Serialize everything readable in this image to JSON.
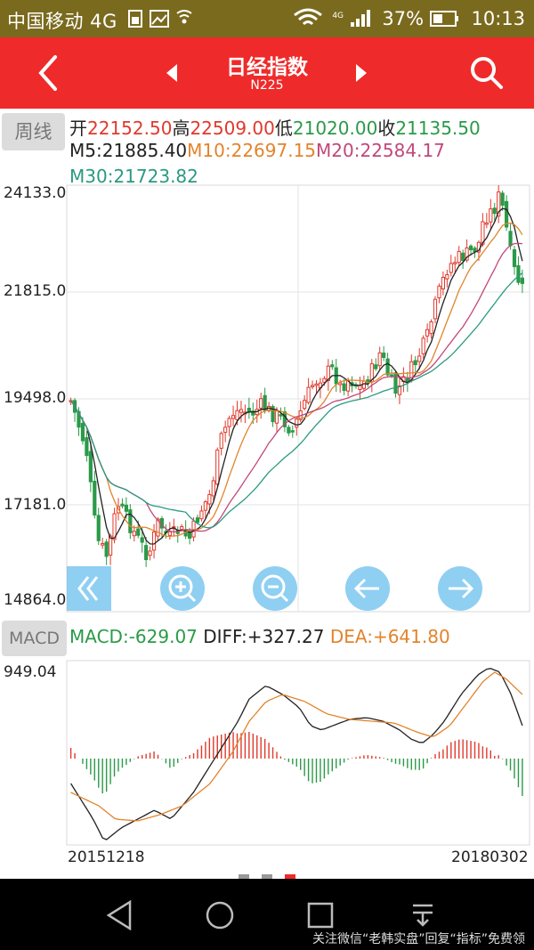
{
  "status_bar": {
    "carrier": "中国移动 4G",
    "battery_percent": "37%",
    "time": "10:13",
    "network_small": "4G"
  },
  "nav": {
    "title": "日经指数",
    "subtitle": "N225",
    "icons": [
      "back-arrow-icon",
      "prev-triangle-icon",
      "next-triangle-icon",
      "search-icon"
    ]
  },
  "period_button": "周线",
  "ohlc": {
    "open_label": "开",
    "open": "22152.50",
    "high_label": "高",
    "high": "22509.00",
    "low_label": "低",
    "low": "21020.00",
    "close_label": "收",
    "close": "21135.50"
  },
  "ma": {
    "m5": "M5:21885.40",
    "m10": "M10:22697.15",
    "m20": "M20:22584.17",
    "m30": "M30:21723.82"
  },
  "y_axis": [
    "24133.0",
    "21815.0",
    "19498.0",
    "17181.0",
    "14864.0"
  ],
  "macd_button": "MACD",
  "macd_info": {
    "macd": "MACD:-629.07",
    "diff": "DIFF:+327.27",
    "dea": "DEA:+641.80"
  },
  "macd_axis_top": "949.04",
  "x_axis": {
    "start": "20151218",
    "end": "20180302"
  },
  "colors": {
    "status_bar": "#7a6a1e",
    "nav_bar": "#ef2a2a",
    "up": "#e0392c",
    "down": "#2a9a48",
    "m5": "#222222",
    "m10": "#e2842c",
    "m20": "#c0487a",
    "m30": "#2a9a82",
    "control_blue": "#7cc7f0"
  },
  "chart_controls": [
    "fast-back-icon",
    "zoom-in-icon",
    "zoom-out-icon",
    "pan-left-icon",
    "pan-right-icon"
  ],
  "watermark": "关注微信“老韩实盘”回复“指标”免费领"
}
